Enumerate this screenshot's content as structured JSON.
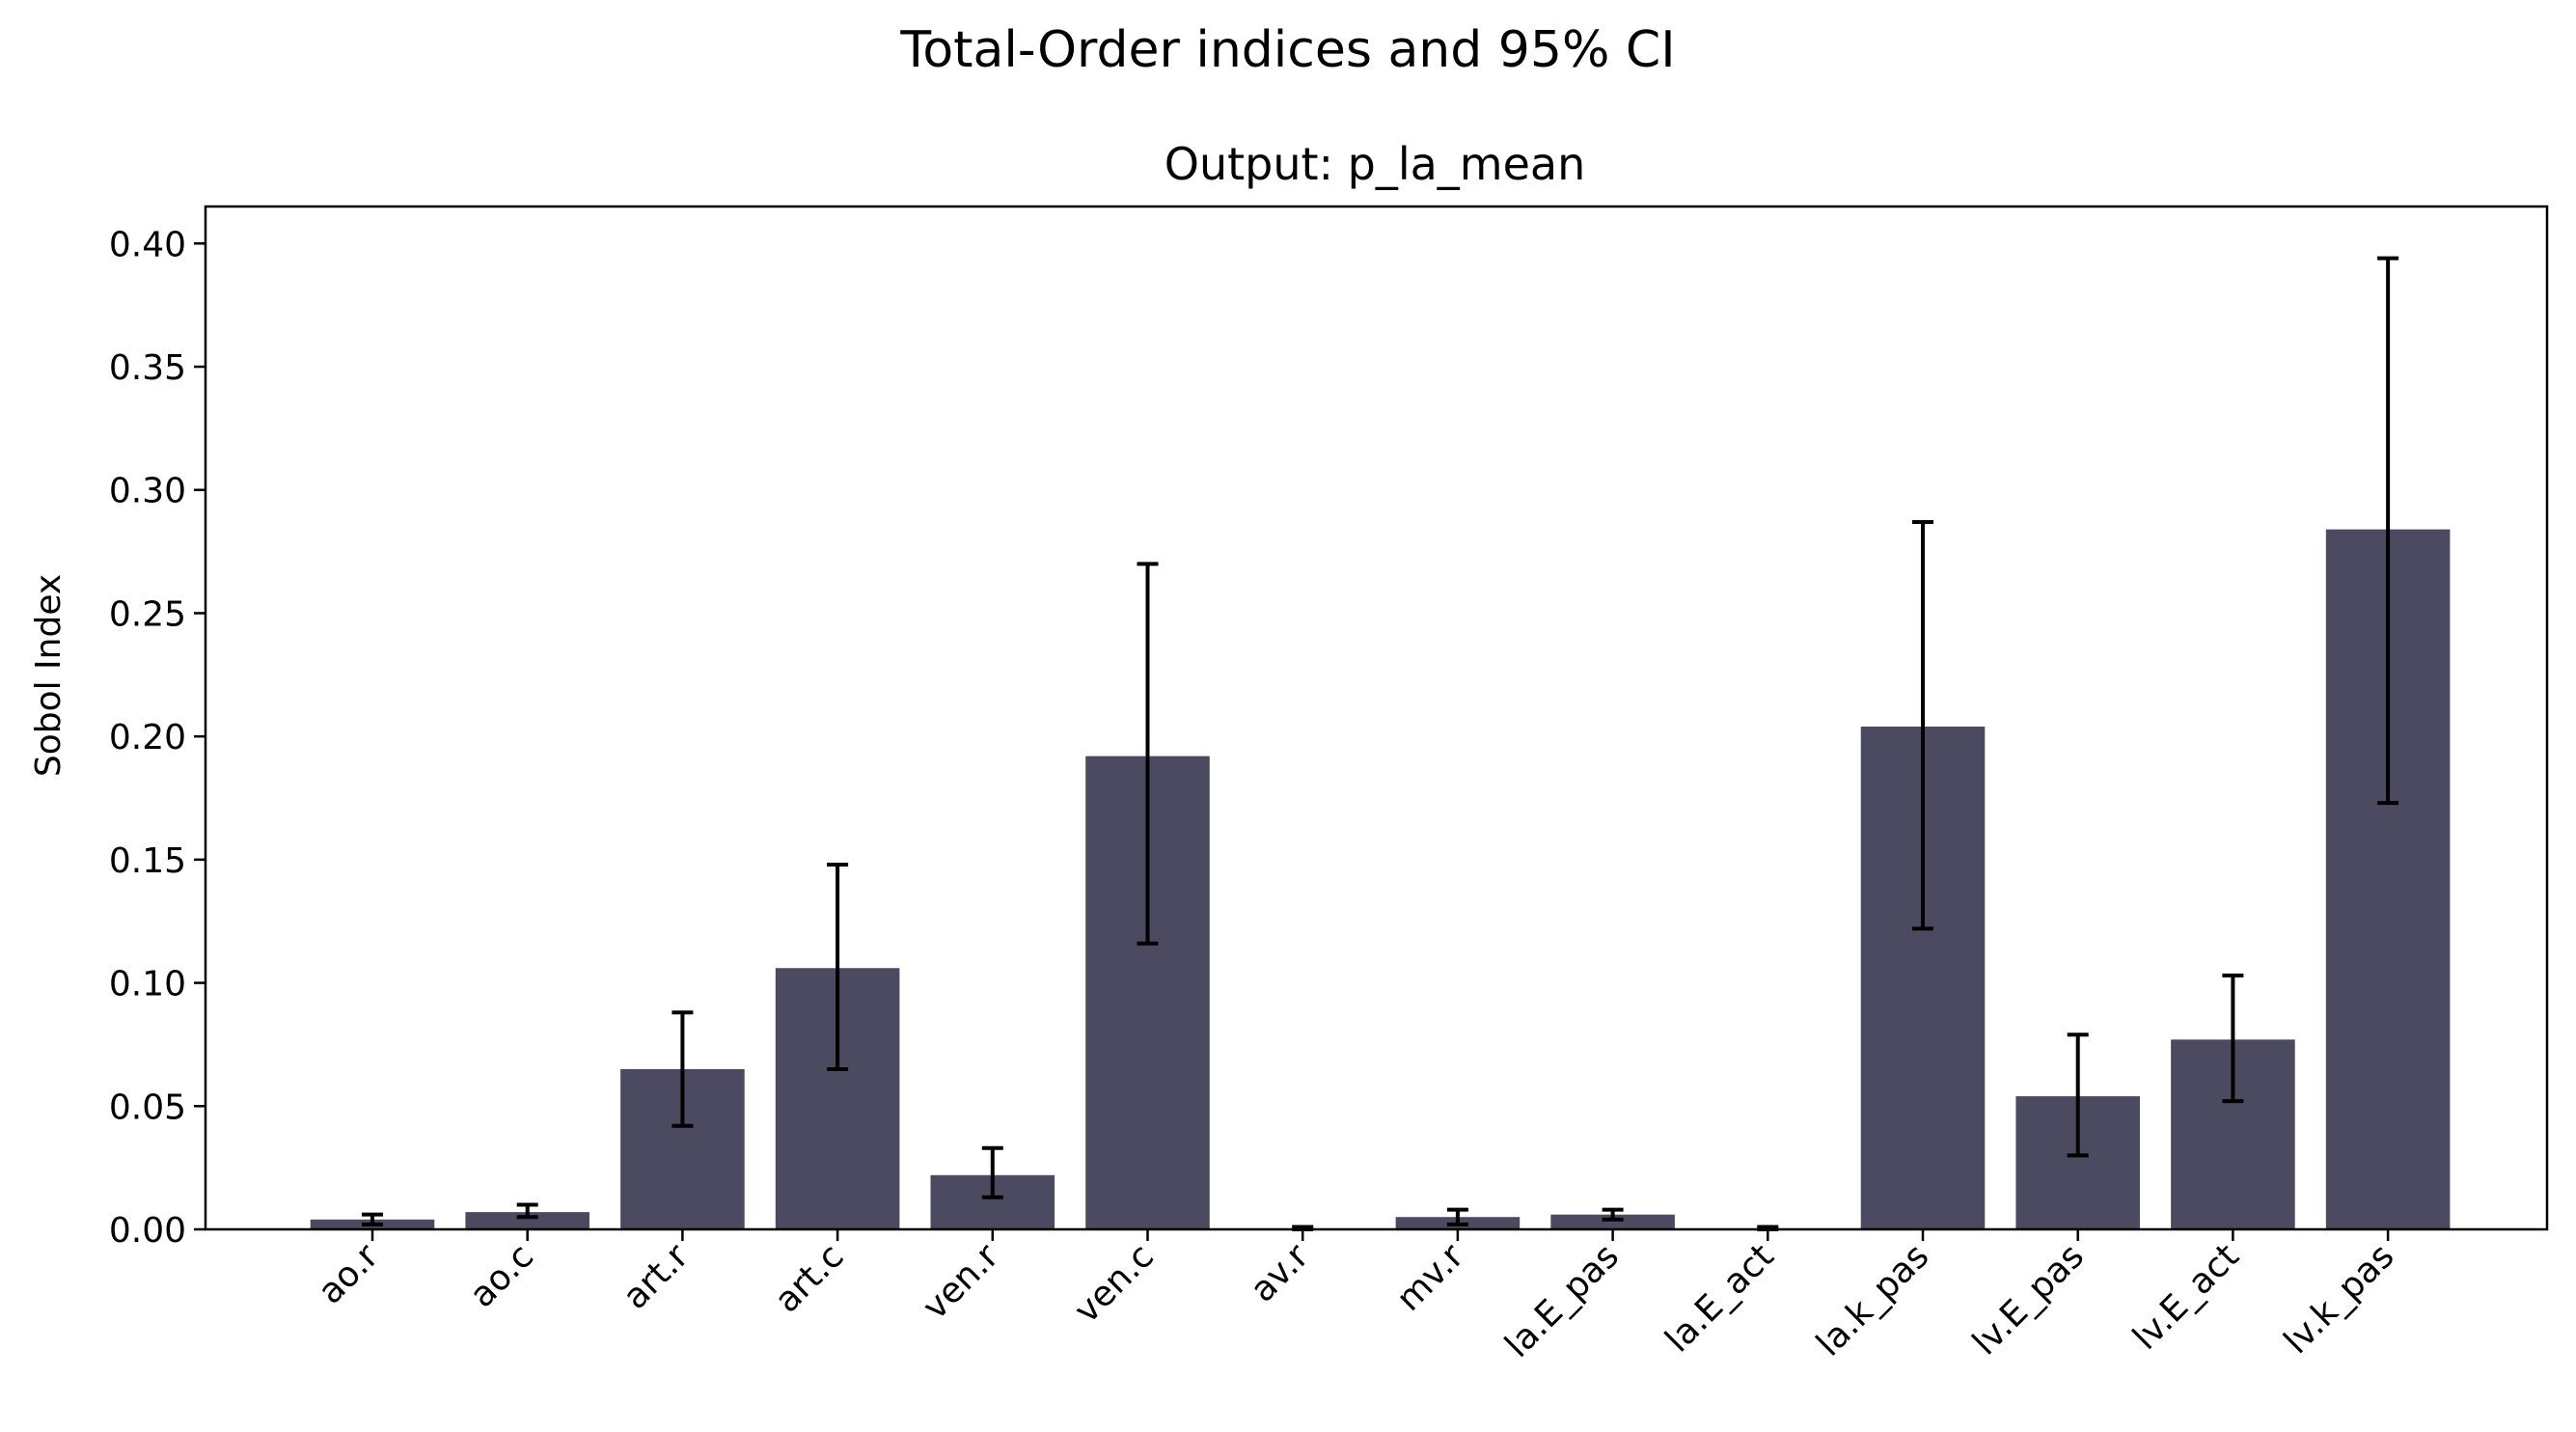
{
  "figure": {
    "suptitle": "Total-Order indices and 95% CI"
  },
  "chart_data": {
    "type": "bar",
    "title": "Output: p_la_mean",
    "xlabel": "",
    "ylabel": "Sobol Index",
    "ylim": [
      0,
      0.415
    ],
    "yticks": [
      "0.00",
      "0.05",
      "0.10",
      "0.15",
      "0.20",
      "0.25",
      "0.30",
      "0.35",
      "0.40"
    ],
    "grid": false,
    "bar_color": "#4b4a61",
    "error_color": "#000000",
    "categories": [
      "ao.r",
      "ao.c",
      "art.r",
      "art.c",
      "ven.r",
      "ven.c",
      "av.r",
      "mv.r",
      "la.E_pas",
      "la.E_act",
      "la.k_pas",
      "lv.E_pas",
      "lv.E_act",
      "lv.k_pas"
    ],
    "values": [
      0.004,
      0.007,
      0.065,
      0.106,
      0.022,
      0.192,
      0.0,
      0.005,
      0.006,
      0.0,
      0.204,
      0.054,
      0.077,
      0.284
    ],
    "ci_lower": [
      0.002,
      0.005,
      0.042,
      0.065,
      0.013,
      0.116,
      0.0,
      0.002,
      0.004,
      0.0,
      0.122,
      0.03,
      0.052,
      0.173
    ],
    "ci_upper": [
      0.006,
      0.01,
      0.088,
      0.148,
      0.033,
      0.27,
      0.001,
      0.008,
      0.008,
      0.001,
      0.287,
      0.079,
      0.103,
      0.394
    ]
  }
}
